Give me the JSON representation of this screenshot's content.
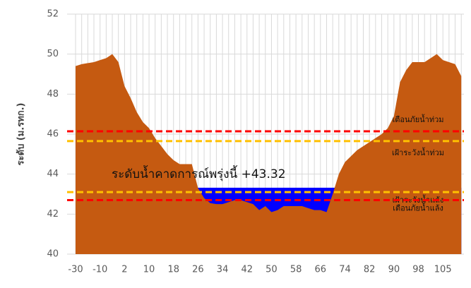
{
  "chart_data": {
    "type": "area",
    "y_label": "ระดับ (ม.รทก.)",
    "categories": [
      "-30",
      null,
      null,
      null,
      "-10",
      null,
      null,
      null,
      "2",
      null,
      null,
      null,
      "10",
      null,
      null,
      null,
      "18",
      null,
      null,
      null,
      "26",
      null,
      null,
      null,
      "34",
      null,
      null,
      null,
      "42",
      null,
      null,
      null,
      "50",
      null,
      null,
      null,
      "58",
      null,
      null,
      null,
      "66",
      null,
      null,
      null,
      "74",
      null,
      null,
      null,
      "82",
      null,
      null,
      null,
      "90",
      null,
      null,
      null,
      "98",
      null,
      null,
      null,
      "105",
      null,
      null,
      null
    ],
    "values": [
      49.4,
      49.5,
      49.55,
      49.6,
      49.7,
      49.8,
      50.0,
      49.6,
      48.4,
      47.8,
      47.1,
      46.6,
      46.3,
      45.8,
      45.4,
      45.0,
      44.7,
      44.5,
      44.5,
      44.5,
      43.3,
      42.8,
      42.55,
      42.5,
      42.5,
      42.6,
      42.7,
      42.7,
      42.6,
      42.5,
      42.2,
      42.4,
      42.1,
      42.2,
      42.4,
      42.4,
      42.4,
      42.4,
      42.3,
      42.2,
      42.2,
      42.1,
      43.0,
      44.0,
      44.6,
      44.9,
      45.2,
      45.4,
      45.6,
      45.8,
      46.0,
      46.3,
      46.9,
      48.6,
      49.2,
      49.6,
      49.6,
      49.6,
      49.8,
      50.0,
      49.7,
      49.6,
      49.5,
      48.9
    ],
    "color": "#c55a11",
    "water": {
      "label": "ระดับน้ำคาดการณ์พรุ่งนี้ +43.32",
      "value": 43.32,
      "color": "#0000ff"
    },
    "thresholds": [
      {
        "label": "เตือนภัยน้ำท่วม",
        "value": 46.14,
        "color": "#ff0000"
      },
      {
        "label": "เฝ้าระวังน้ำท่วม",
        "value": 45.65,
        "color": "#ffc000"
      },
      {
        "label": "เฝ้าระวังน้ำแล้ง",
        "value": 43.1,
        "color": "#ffc000"
      },
      {
        "label": "เตือนภัยน้ำแล้ง",
        "value": 42.7,
        "color": "#ff0000"
      }
    ],
    "ylim": [
      40,
      52
    ],
    "yticks": [
      40,
      42,
      44,
      46,
      48,
      50,
      52
    ],
    "grid": true
  }
}
